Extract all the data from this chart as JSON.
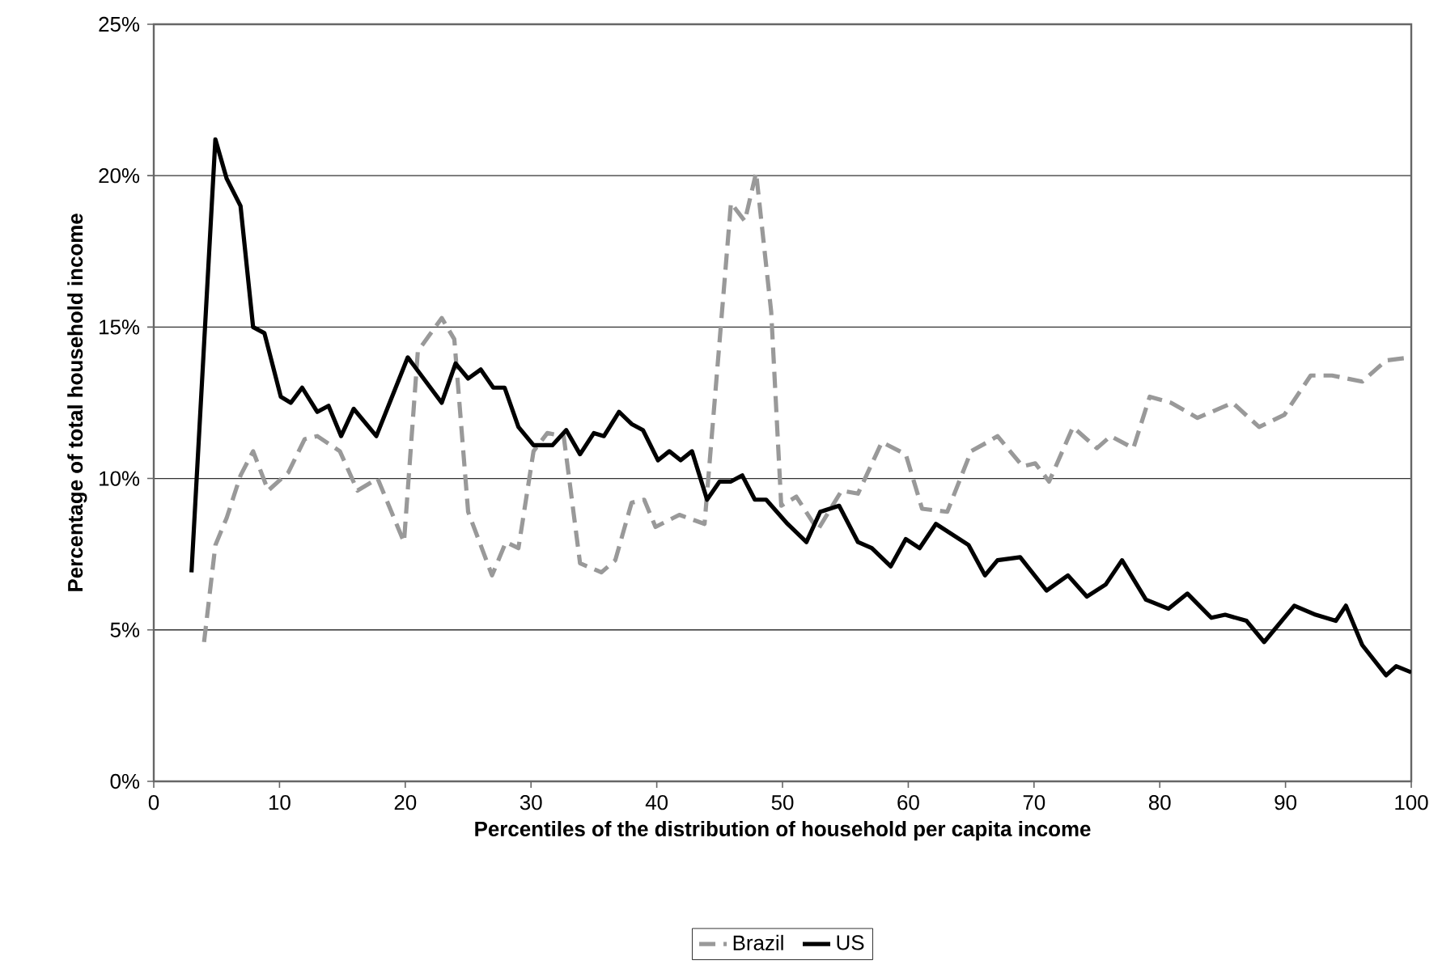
{
  "chart_data": {
    "type": "line",
    "xlabel": "Percentiles of the distribution of household per capita income",
    "ylabel": "Percentage of total household income",
    "xlim": [
      0,
      100
    ],
    "xticks": [
      0,
      10,
      20,
      30,
      40,
      50,
      60,
      70,
      80,
      90,
      100
    ],
    "ylim": [
      0,
      25
    ],
    "yticks": [
      {
        "value": 0,
        "label": "0%"
      },
      {
        "value": 5,
        "label": "5%"
      },
      {
        "value": 10,
        "label": "10%"
      },
      {
        "value": 15,
        "label": "15%"
      },
      {
        "value": 20,
        "label": "20%"
      },
      {
        "value": 25,
        "label": "25%"
      }
    ],
    "grid": "y",
    "legend": "bottom",
    "marker": "none",
    "series": [
      {
        "name": "Brazil",
        "color": "#999999",
        "line_style": "dashed",
        "x": [
          4.0,
          4.9,
          5.8,
          6.9,
          7.9,
          9.1,
          10.7,
          12.0,
          13.0,
          14.8,
          16.2,
          17.8,
          19.9,
          21.0,
          22.9,
          23.9,
          25.0,
          26.9,
          28.0,
          29.0,
          30.2,
          31.3,
          32.6,
          33.9,
          35.6,
          36.7,
          38.0,
          39.0,
          39.9,
          41.8,
          43.8,
          45.9,
          47.0,
          47.9,
          49.1,
          49.9,
          51.1,
          52.8,
          54.7,
          56.0,
          57.9,
          59.8,
          61.1,
          63.1,
          65.0,
          66.3,
          67.1,
          69.1,
          70.1,
          71.2,
          73.1,
          75.0,
          76.1,
          77.9,
          79.2,
          80.9,
          83.0,
          85.8,
          87.9,
          89.9,
          92.0,
          93.7,
          96.1,
          98.0,
          100
        ],
        "values": [
          4.6,
          7.8,
          8.7,
          10.1,
          10.9,
          9.6,
          10.2,
          11.3,
          11.4,
          10.9,
          9.6,
          10.0,
          7.9,
          14.2,
          15.3,
          14.6,
          8.9,
          6.8,
          7.9,
          7.7,
          10.9,
          11.5,
          11.4,
          7.2,
          6.9,
          7.3,
          9.2,
          9.3,
          8.4,
          8.8,
          8.5,
          19.1,
          18.5,
          20.1,
          15.5,
          9.1,
          9.4,
          8.3,
          9.6,
          9.5,
          11.2,
          10.8,
          9.0,
          8.9,
          10.9,
          11.2,
          11.4,
          10.4,
          10.5,
          9.9,
          11.7,
          11.0,
          11.4,
          11.0,
          12.7,
          12.5,
          12.0,
          12.5,
          11.7,
          12.1,
          13.4,
          13.4,
          13.2,
          13.9,
          14.0
        ]
      },
      {
        "name": "US",
        "color": "#000000",
        "line_style": "solid",
        "x": [
          3.0,
          4.9,
          5.8,
          6.9,
          7.9,
          8.8,
          10.1,
          10.9,
          11.8,
          13.0,
          13.9,
          14.9,
          15.9,
          17.7,
          20.2,
          22.9,
          24.0,
          25.0,
          26.0,
          27.0,
          27.9,
          29.0,
          30.2,
          31.7,
          32.8,
          33.9,
          35.0,
          35.8,
          37.0,
          38.0,
          38.9,
          40.1,
          41.0,
          41.9,
          42.8,
          44.0,
          45.0,
          45.9,
          46.8,
          47.8,
          48.7,
          50.4,
          51.9,
          53.0,
          54.5,
          56.0,
          57.1,
          58.6,
          59.8,
          60.9,
          62.2,
          64.8,
          66.1,
          67.1,
          68.9,
          71.0,
          72.7,
          74.2,
          75.7,
          77.0,
          78.9,
          80.7,
          82.2,
          84.1,
          85.2,
          86.9,
          88.3,
          90.7,
          92.4,
          94.0,
          94.8,
          96.1,
          98.0,
          98.8,
          100
        ],
        "values": [
          6.9,
          21.2,
          19.9,
          19.0,
          15.0,
          14.8,
          12.7,
          12.5,
          13.0,
          12.2,
          12.4,
          11.4,
          12.3,
          11.4,
          14.0,
          12.5,
          13.8,
          13.3,
          13.6,
          13.0,
          13.0,
          11.7,
          11.1,
          11.1,
          11.6,
          10.8,
          11.5,
          11.4,
          12.2,
          11.8,
          11.6,
          10.6,
          10.9,
          10.6,
          10.9,
          9.3,
          9.9,
          9.9,
          10.1,
          9.3,
          9.3,
          8.5,
          7.9,
          8.9,
          9.1,
          7.9,
          7.7,
          7.1,
          8.0,
          7.7,
          8.5,
          7.8,
          6.8,
          7.3,
          7.4,
          6.3,
          6.8,
          6.1,
          6.5,
          7.3,
          6.0,
          5.7,
          6.2,
          5.4,
          5.5,
          5.3,
          4.6,
          5.8,
          5.5,
          5.3,
          5.8,
          4.5,
          3.5,
          3.8,
          3.6
        ]
      }
    ]
  }
}
